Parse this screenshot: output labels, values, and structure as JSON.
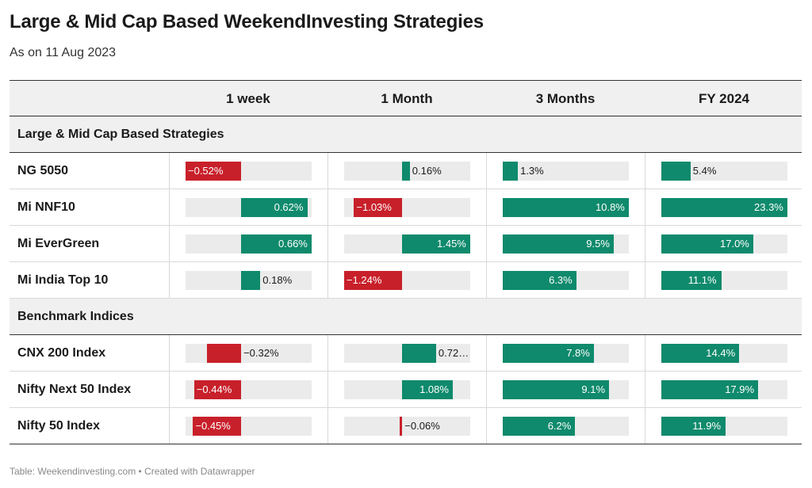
{
  "title": "Large & Mid Cap Based WeekendInvesting Strategies",
  "subtitle": "As on 11 Aug 2023",
  "footer": "Table: Weekendinvesting.com • Created with Datawrapper",
  "colors": {
    "positive": "#0f8a6c",
    "negative": "#c8202a",
    "track": "#ebebeb"
  },
  "chart_data": {
    "type": "table",
    "columns": [
      "1 week",
      "1 Month",
      "3 Months",
      "FY 2024"
    ],
    "column_ranges": [
      [
        -0.52,
        0.66
      ],
      [
        -1.24,
        1.45
      ],
      [
        0,
        10.8
      ],
      [
        0,
        23.3
      ]
    ],
    "groups": [
      {
        "name": "Large & Mid Cap Based Strategies",
        "rows": [
          {
            "name": "NG 5050",
            "values": [
              -0.52,
              0.16,
              1.3,
              5.4
            ],
            "labels": [
              "−0.52%",
              "0.16%",
              "1.3%",
              "5.4%"
            ]
          },
          {
            "name": "Mi NNF10",
            "values": [
              0.62,
              -1.03,
              10.8,
              23.3
            ],
            "labels": [
              "0.62%",
              "−1.03%",
              "10.8%",
              "23.3%"
            ]
          },
          {
            "name": "Mi EverGreen",
            "values": [
              0.66,
              1.45,
              9.5,
              17.0
            ],
            "labels": [
              "0.66%",
              "1.45%",
              "9.5%",
              "17.0%"
            ]
          },
          {
            "name": "Mi India Top 10",
            "values": [
              0.18,
              -1.24,
              6.3,
              11.1
            ],
            "labels": [
              "0.18%",
              "−1.24%",
              "6.3%",
              "11.1%"
            ]
          }
        ]
      },
      {
        "name": "Benchmark Indices",
        "rows": [
          {
            "name": "CNX 200 Index",
            "values": [
              -0.32,
              0.72,
              7.8,
              14.4
            ],
            "labels": [
              "−0.32%",
              "0.72…",
              "7.8%",
              "14.4%"
            ]
          },
          {
            "name": "Nifty Next 50 Index",
            "values": [
              -0.44,
              1.08,
              9.1,
              17.9
            ],
            "labels": [
              "−0.44%",
              "1.08%",
              "9.1%",
              "17.9%"
            ]
          },
          {
            "name": "Nifty 50 Index",
            "values": [
              -0.45,
              -0.06,
              6.2,
              11.9
            ],
            "labels": [
              "−0.45%",
              "−0.06%",
              "6.2%",
              "11.9%"
            ]
          }
        ]
      }
    ]
  }
}
